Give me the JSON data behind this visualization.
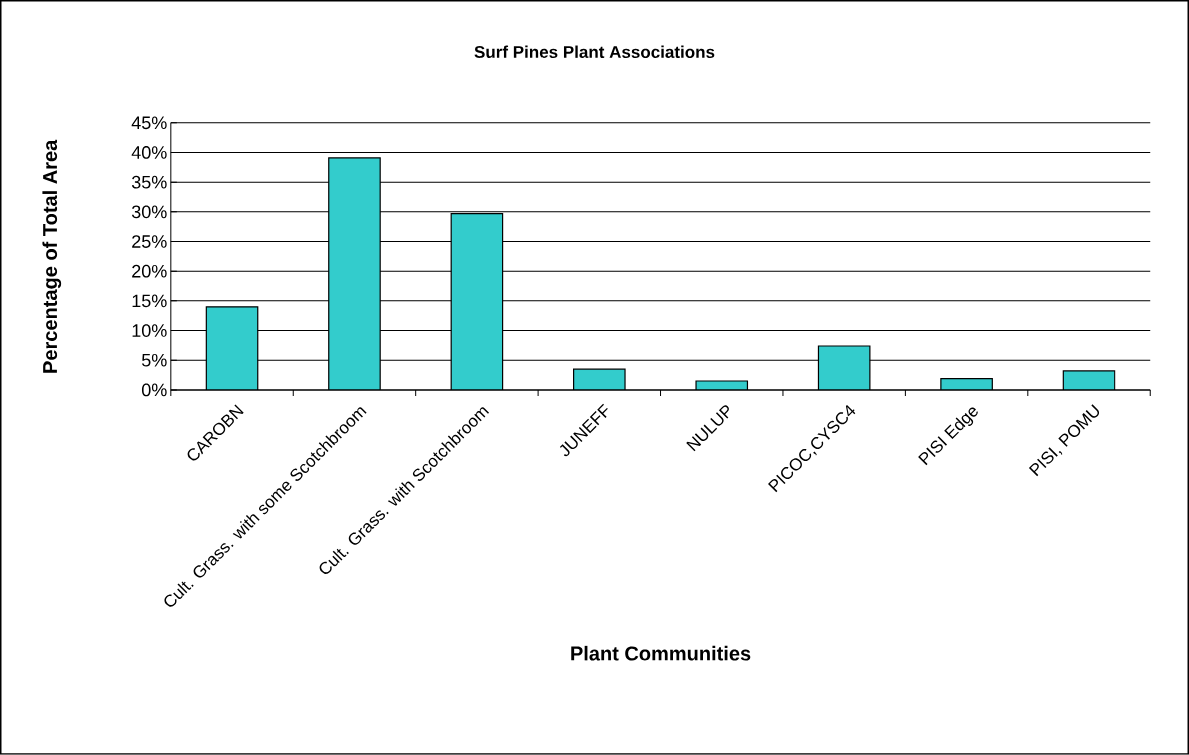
{
  "chart_data": {
    "type": "bar",
    "title": "Surf Pines Plant Associations",
    "xlabel": "Plant Communities",
    "ylabel": "Percentage of Total Area",
    "categories": [
      "CAROBN",
      "Cult. Grass. with some Scotchbroom",
      "Cult. Grass. with Scotchbroom",
      "JUNEFF",
      "NULUP",
      "PICOC,CYSC4",
      "PISI Edge",
      "PISI, POMU"
    ],
    "values": [
      14,
      39.1,
      29.7,
      3.5,
      1.5,
      7.4,
      1.9,
      3.2
    ],
    "color": "#33cccc",
    "ylim": [
      0,
      45
    ],
    "yticks": [
      {
        "value": 0,
        "label": "0%"
      },
      {
        "value": 5,
        "label": "5%"
      },
      {
        "value": 10,
        "label": "10%"
      },
      {
        "value": 15,
        "label": "15%"
      },
      {
        "value": 20,
        "label": "20%"
      },
      {
        "value": 25,
        "label": "25%"
      },
      {
        "value": 30,
        "label": "30%"
      },
      {
        "value": 35,
        "label": "35%"
      },
      {
        "value": 40,
        "label": "40%"
      },
      {
        "value": 45,
        "label": "45%"
      }
    ],
    "grid": "y"
  }
}
